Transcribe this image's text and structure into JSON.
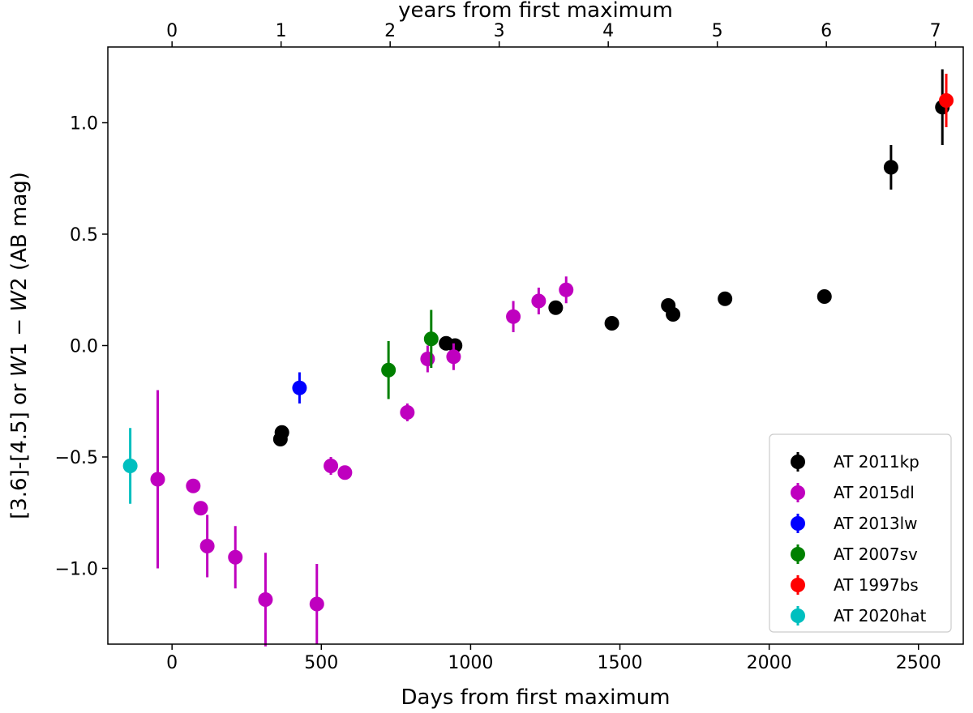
{
  "chart_data": {
    "type": "scatter",
    "xlabel": "Days from first maximum",
    "ylabel_parts": [
      "[3.6]-[4.5] or ",
      "W",
      "1 − ",
      "W",
      "2 (AB mag)"
    ],
    "top_xlabel": "years from first maximum",
    "xlim": [
      -215,
      2650
    ],
    "ylim": [
      -1.34,
      1.34
    ],
    "x_ticks": [
      0,
      500,
      1000,
      1500,
      2000,
      2500
    ],
    "x_tick_labels": [
      "0",
      "500",
      "1000",
      "1500",
      "2000",
      "2500"
    ],
    "y_ticks": [
      -1.0,
      -0.5,
      0.0,
      0.5,
      1.0
    ],
    "y_tick_labels": [
      "−1.0",
      "−0.5",
      "0.0",
      "0.5",
      "1.0"
    ],
    "top_ticks_days": [
      0,
      365.25,
      730.5,
      1095.75,
      1461,
      1826.25,
      2191.5,
      2556.75
    ],
    "top_tick_labels": [
      "0",
      "1",
      "2",
      "3",
      "4",
      "5",
      "6",
      "7"
    ],
    "legend_position": "lower-right",
    "series": [
      {
        "name": "AT 2011kp",
        "color": "#000000",
        "points": [
          {
            "x": 363,
            "y": -0.42,
            "err": 0.02
          },
          {
            "x": 368,
            "y": -0.39,
            "err": 0.02
          },
          {
            "x": 918,
            "y": 0.01,
            "err": 0.01
          },
          {
            "x": 948,
            "y": 0.0,
            "err": 0.01
          },
          {
            "x": 1285,
            "y": 0.17,
            "err": 0.01
          },
          {
            "x": 1473,
            "y": 0.1,
            "err": 0.01
          },
          {
            "x": 1662,
            "y": 0.18,
            "err": 0.01
          },
          {
            "x": 1678,
            "y": 0.14,
            "err": 0.01
          },
          {
            "x": 1852,
            "y": 0.21,
            "err": 0.01
          },
          {
            "x": 2185,
            "y": 0.22,
            "err": 0.03
          },
          {
            "x": 2408,
            "y": 0.8,
            "err": 0.1
          },
          {
            "x": 2580,
            "y": 1.07,
            "err": 0.17
          }
        ]
      },
      {
        "name": "AT 2015dl",
        "color": "#bf00bf",
        "points": [
          {
            "x": -48,
            "y": -0.6,
            "err": 0.4
          },
          {
            "x": 71,
            "y": -0.63,
            "err": 0.02
          },
          {
            "x": 96,
            "y": -0.73,
            "err": 0.02
          },
          {
            "x": 118,
            "y": -0.9,
            "err": 0.14
          },
          {
            "x": 212,
            "y": -0.95,
            "err": 0.14
          },
          {
            "x": 313,
            "y": -1.14,
            "err": 0.21
          },
          {
            "x": 485,
            "y": -1.16,
            "err": 0.18
          },
          {
            "x": 532,
            "y": -0.54,
            "err": 0.04
          },
          {
            "x": 579,
            "y": -0.57,
            "err": 0.01
          },
          {
            "x": 788,
            "y": -0.3,
            "err": 0.04
          },
          {
            "x": 856,
            "y": -0.06,
            "err": 0.06
          },
          {
            "x": 943,
            "y": -0.05,
            "err": 0.06
          },
          {
            "x": 1143,
            "y": 0.13,
            "err": 0.07
          },
          {
            "x": 1228,
            "y": 0.2,
            "err": 0.06
          },
          {
            "x": 1320,
            "y": 0.25,
            "err": 0.06
          }
        ]
      },
      {
        "name": "AT 2013lw",
        "color": "#0000ff",
        "points": [
          {
            "x": 427,
            "y": -0.19,
            "err": 0.07
          }
        ]
      },
      {
        "name": "AT 2007sv",
        "color": "#008000",
        "points": [
          {
            "x": 725,
            "y": -0.11,
            "err": 0.13
          },
          {
            "x": 868,
            "y": 0.03,
            "err": 0.13
          }
        ]
      },
      {
        "name": "AT 1997bs",
        "color": "#ff0000",
        "points": [
          {
            "x": 2593,
            "y": 1.1,
            "err": 0.12
          }
        ]
      },
      {
        "name": "AT 2020hat",
        "color": "#00bfbf",
        "points": [
          {
            "x": -140,
            "y": -0.54,
            "err": 0.17
          }
        ]
      }
    ]
  }
}
